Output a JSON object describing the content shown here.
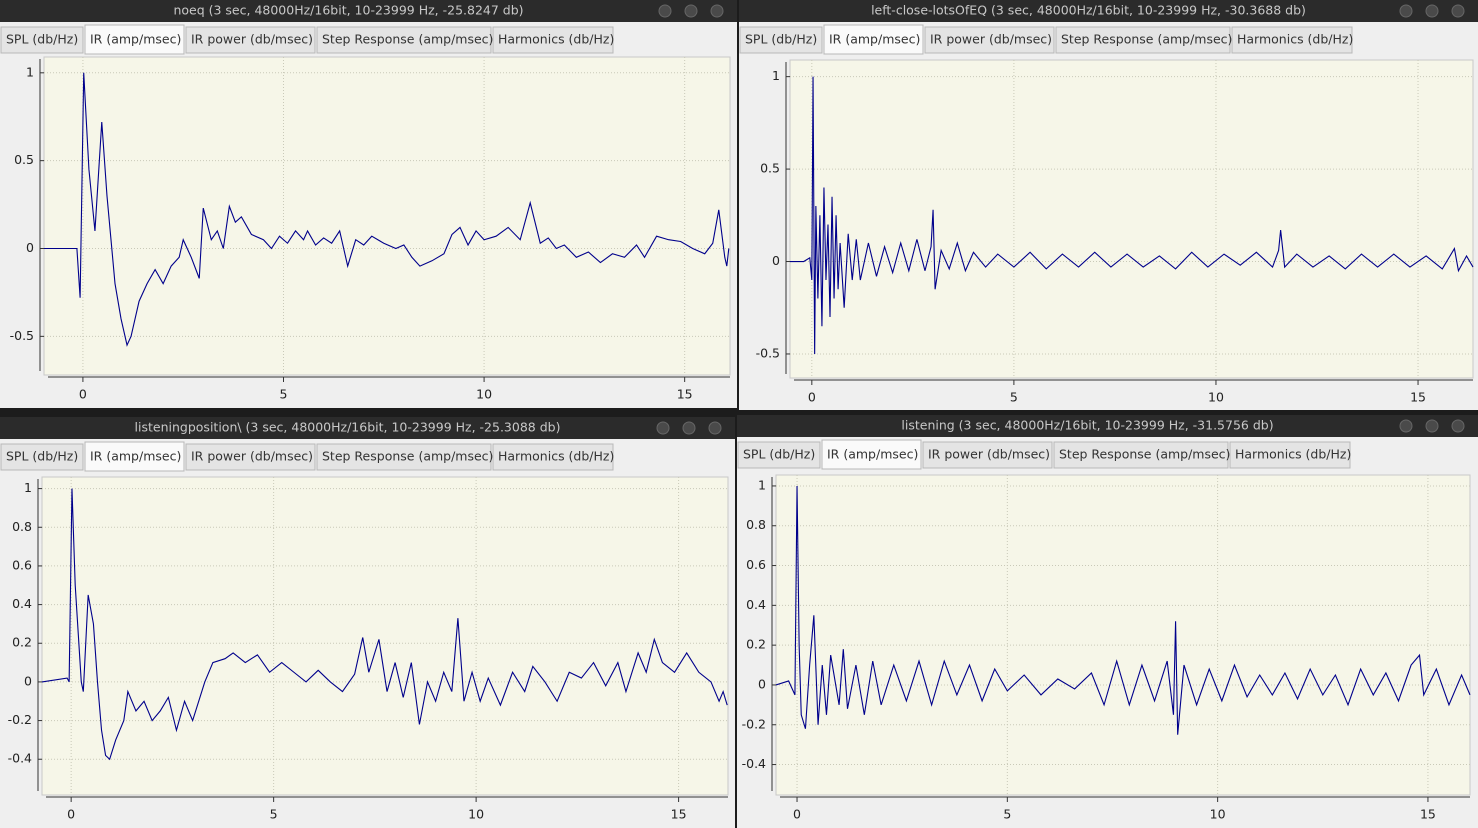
{
  "windows": [
    {
      "title": "noeq (3 sec, 48000Hz/16bit, 10-23999 Hz, -25.8247 db)",
      "tabs": [
        "SPL (db/Hz)",
        "IR (amp/msec)",
        "IR power (db/msec)",
        "Step Response (amp/msec)",
        "Harmonics (db/Hz)"
      ],
      "active_tab": 1,
      "chart_data": {
        "type": "line",
        "color": "#00008b",
        "grid": true,
        "xlim": [
          -0.97,
          16.13
        ],
        "ylim": [
          -0.72,
          1.09
        ],
        "xticks": [
          0,
          5,
          10,
          15
        ],
        "yticks": [
          1,
          0.5,
          0,
          -0.5
        ],
        "x": [
          -0.97,
          -0.5,
          -0.15,
          -0.07,
          0.02,
          0.15,
          0.3,
          0.47,
          0.6,
          0.8,
          0.95,
          1.1,
          1.2,
          1.4,
          1.6,
          1.8,
          2.0,
          2.2,
          2.4,
          2.5,
          2.7,
          2.9,
          3.0,
          3.2,
          3.35,
          3.5,
          3.65,
          3.8,
          3.95,
          4.2,
          4.5,
          4.7,
          4.9,
          5.1,
          5.3,
          5.5,
          5.6,
          5.8,
          6.0,
          6.2,
          6.4,
          6.6,
          6.8,
          7.0,
          7.2,
          7.5,
          7.8,
          8.0,
          8.2,
          8.4,
          8.7,
          9.0,
          9.2,
          9.4,
          9.6,
          9.8,
          10.0,
          10.3,
          10.6,
          10.9,
          11.15,
          11.4,
          11.6,
          11.8,
          12.0,
          12.3,
          12.6,
          12.9,
          13.2,
          13.5,
          13.8,
          14.0,
          14.3,
          14.6,
          14.9,
          15.2,
          15.5,
          15.7,
          15.85,
          16.0,
          16.05,
          16.1
        ],
        "values": [
          0,
          0,
          0,
          -0.28,
          1.0,
          0.45,
          0.1,
          0.72,
          0.3,
          -0.2,
          -0.4,
          -0.55,
          -0.5,
          -0.3,
          -0.2,
          -0.12,
          -0.2,
          -0.1,
          -0.05,
          0.05,
          -0.05,
          -0.17,
          0.23,
          0.05,
          0.1,
          0,
          0.24,
          0.15,
          0.18,
          0.08,
          0.05,
          0,
          0.07,
          0.03,
          0.1,
          0.05,
          0.1,
          0.02,
          0.06,
          0.03,
          0.1,
          -0.1,
          0.05,
          0.02,
          0.07,
          0.03,
          0,
          0.02,
          -0.05,
          -0.1,
          -0.07,
          -0.03,
          0.08,
          0.12,
          0.02,
          0.1,
          0.05,
          0.07,
          0.12,
          0.05,
          0.26,
          0.03,
          0.06,
          0,
          0.02,
          -0.05,
          -0.02,
          -0.08,
          -0.03,
          -0.05,
          0.02,
          -0.05,
          0.07,
          0.05,
          0.04,
          0,
          -0.03,
          0.03,
          0.22,
          -0.05,
          -0.1,
          0
        ]
      }
    },
    {
      "title": "left-close-lotsOfEQ (3 sec, 48000Hz/16bit, 10-23999 Hz, -30.3688 db)",
      "tabs": [
        "SPL (db/Hz)",
        "IR (amp/msec)",
        "IR power (db/msec)",
        "Step Response (amp/msec)",
        "Harmonics (db/Hz)"
      ],
      "active_tab": 1,
      "chart_data": {
        "type": "line",
        "color": "#00008b",
        "grid": true,
        "xlim": [
          -0.54,
          16.36
        ],
        "ylim": [
          -0.63,
          1.09
        ],
        "xticks": [
          0,
          5,
          10,
          15
        ],
        "yticks": [
          1,
          0.5,
          0,
          -0.5
        ],
        "x": [
          -0.54,
          -0.2,
          -0.05,
          0.0,
          0.03,
          0.07,
          0.1,
          0.15,
          0.2,
          0.25,
          0.3,
          0.35,
          0.4,
          0.45,
          0.5,
          0.55,
          0.6,
          0.65,
          0.7,
          0.8,
          0.9,
          1.0,
          1.1,
          1.2,
          1.4,
          1.6,
          1.8,
          2.0,
          2.2,
          2.4,
          2.6,
          2.8,
          2.95,
          3.0,
          3.05,
          3.2,
          3.4,
          3.6,
          3.8,
          4.0,
          4.3,
          4.6,
          5.0,
          5.4,
          5.8,
          6.2,
          6.6,
          7.0,
          7.4,
          7.8,
          8.2,
          8.6,
          9.0,
          9.4,
          9.8,
          10.2,
          10.6,
          11.0,
          11.4,
          11.55,
          11.6,
          11.7,
          12.0,
          12.4,
          12.8,
          13.2,
          13.6,
          14.0,
          14.4,
          14.8,
          15.2,
          15.6,
          15.9,
          16.0,
          16.2,
          16.36
        ],
        "values": [
          0,
          0,
          0.02,
          -0.1,
          1.0,
          -0.5,
          0.3,
          -0.2,
          0.25,
          -0.35,
          0.4,
          -0.1,
          0.2,
          -0.3,
          0.35,
          -0.2,
          0.25,
          -0.15,
          0.1,
          -0.25,
          0.15,
          -0.1,
          0.12,
          -0.1,
          0.1,
          -0.08,
          0.08,
          -0.06,
          0.1,
          -0.05,
          0.12,
          -0.05,
          0.08,
          0.28,
          -0.15,
          0.06,
          -0.04,
          0.1,
          -0.05,
          0.05,
          -0.03,
          0.04,
          -0.03,
          0.05,
          -0.04,
          0.04,
          -0.03,
          0.05,
          -0.03,
          0.04,
          -0.03,
          0.03,
          -0.04,
          0.05,
          -0.03,
          0.04,
          -0.02,
          0.05,
          -0.03,
          0.06,
          0.17,
          -0.03,
          0.04,
          -0.03,
          0.03,
          -0.04,
          0.04,
          -0.03,
          0.04,
          -0.03,
          0.03,
          -0.04,
          0.07,
          -0.05,
          0.03,
          -0.03
        ]
      }
    },
    {
      "title": "listeningposition\\ (3 sec, 48000Hz/16bit, 10-23999 Hz, -25.3088 db)",
      "tabs": [
        "SPL (db/Hz)",
        "IR (amp/msec)",
        "IR power (db/msec)",
        "Step Response (amp/msec)",
        "Harmonics (db/Hz)"
      ],
      "active_tab": 1,
      "chart_data": {
        "type": "line",
        "color": "#00008b",
        "grid": true,
        "xlim": [
          -0.72,
          16.22
        ],
        "ylim": [
          -0.585,
          1.06
        ],
        "xticks": [
          0,
          5,
          10,
          15
        ],
        "yticks": [
          1,
          0.8,
          0.6,
          0.4,
          0.2,
          0,
          -0.2,
          -0.4
        ],
        "x": [
          -0.72,
          -0.1,
          -0.05,
          0.02,
          0.1,
          0.25,
          0.3,
          0.42,
          0.55,
          0.65,
          0.75,
          0.85,
          0.95,
          1.1,
          1.3,
          1.4,
          1.6,
          1.8,
          2.0,
          2.2,
          2.4,
          2.6,
          2.8,
          3.0,
          3.3,
          3.5,
          3.8,
          4.0,
          4.3,
          4.6,
          4.9,
          5.2,
          5.5,
          5.8,
          6.1,
          6.4,
          6.7,
          7.0,
          7.2,
          7.35,
          7.6,
          7.8,
          8.0,
          8.2,
          8.4,
          8.6,
          8.8,
          9.0,
          9.2,
          9.4,
          9.55,
          9.7,
          9.9,
          10.1,
          10.3,
          10.6,
          10.9,
          11.2,
          11.4,
          11.7,
          12.0,
          12.3,
          12.6,
          12.9,
          13.2,
          13.5,
          13.7,
          14.0,
          14.2,
          14.4,
          14.6,
          14.9,
          15.2,
          15.5,
          15.8,
          16.0,
          16.1,
          16.2
        ],
        "values": [
          0,
          0.02,
          0,
          1.0,
          0.5,
          0,
          -0.05,
          0.45,
          0.3,
          0,
          -0.25,
          -0.38,
          -0.4,
          -0.3,
          -0.2,
          -0.05,
          -0.15,
          -0.1,
          -0.2,
          -0.15,
          -0.08,
          -0.25,
          -0.1,
          -0.2,
          0,
          0.1,
          0.12,
          0.15,
          0.1,
          0.14,
          0.05,
          0.1,
          0.05,
          0,
          0.06,
          0,
          -0.05,
          0.04,
          0.23,
          0.05,
          0.22,
          -0.05,
          0.1,
          -0.08,
          0.1,
          -0.22,
          0,
          -0.1,
          0.05,
          -0.05,
          0.33,
          -0.1,
          0.05,
          -0.1,
          0.02,
          -0.12,
          0.05,
          -0.05,
          0.08,
          0,
          -0.1,
          0.05,
          0.02,
          0.1,
          -0.02,
          0.1,
          -0.05,
          0.15,
          0.05,
          0.22,
          0.1,
          0.05,
          0.15,
          0.05,
          0,
          -0.1,
          -0.05,
          -0.12
        ]
      }
    },
    {
      "title": "listening (3 sec, 48000Hz/16bit, 10-23999 Hz, -31.5756 db)",
      "tabs": [
        "SPL (db/Hz)",
        "IR (amp/msec)",
        "IR power (db/msec)",
        "Step Response (amp/msec)",
        "Harmonics (db/Hz)"
      ],
      "active_tab": 1,
      "chart_data": {
        "type": "line",
        "color": "#00008b",
        "grid": true,
        "xlim": [
          -0.5,
          16.0
        ],
        "ylim": [
          -0.553,
          1.055
        ],
        "xticks": [
          0,
          5,
          10,
          15
        ],
        "yticks": [
          1,
          0.8,
          0.6,
          0.4,
          0.2,
          0,
          -0.2,
          -0.4
        ],
        "x": [
          -0.5,
          -0.2,
          -0.05,
          0.0,
          0.05,
          0.1,
          0.2,
          0.3,
          0.4,
          0.5,
          0.6,
          0.7,
          0.8,
          1.0,
          1.1,
          1.2,
          1.4,
          1.6,
          1.8,
          2.0,
          2.3,
          2.6,
          2.9,
          3.2,
          3.5,
          3.8,
          4.1,
          4.4,
          4.7,
          5.0,
          5.4,
          5.8,
          6.2,
          6.6,
          7.0,
          7.3,
          7.6,
          7.9,
          8.2,
          8.5,
          8.8,
          8.95,
          9.0,
          9.05,
          9.2,
          9.5,
          9.8,
          10.1,
          10.4,
          10.7,
          11.0,
          11.3,
          11.6,
          11.9,
          12.2,
          12.5,
          12.8,
          13.1,
          13.4,
          13.7,
          14.0,
          14.3,
          14.6,
          14.8,
          14.9,
          15.2,
          15.5,
          15.8,
          16.0
        ],
        "values": [
          0,
          0.02,
          -0.05,
          1.0,
          0.2,
          -0.15,
          -0.22,
          0.1,
          0.35,
          -0.2,
          0.1,
          -0.15,
          0.15,
          -0.1,
          0.18,
          -0.12,
          0.1,
          -0.15,
          0.12,
          -0.1,
          0.1,
          -0.08,
          0.12,
          -0.1,
          0.12,
          -0.05,
          0.1,
          -0.08,
          0.08,
          -0.03,
          0.05,
          -0.05,
          0.03,
          -0.02,
          0.06,
          -0.1,
          0.12,
          -0.1,
          0.1,
          -0.08,
          0.12,
          -0.15,
          0.32,
          -0.25,
          0.1,
          -0.1,
          0.08,
          -0.08,
          0.1,
          -0.06,
          0.05,
          -0.05,
          0.06,
          -0.07,
          0.08,
          -0.05,
          0.05,
          -0.1,
          0.08,
          -0.05,
          0.06,
          -0.08,
          0.1,
          0.15,
          -0.05,
          0.08,
          -0.1,
          0.05,
          -0.05
        ]
      }
    }
  ]
}
